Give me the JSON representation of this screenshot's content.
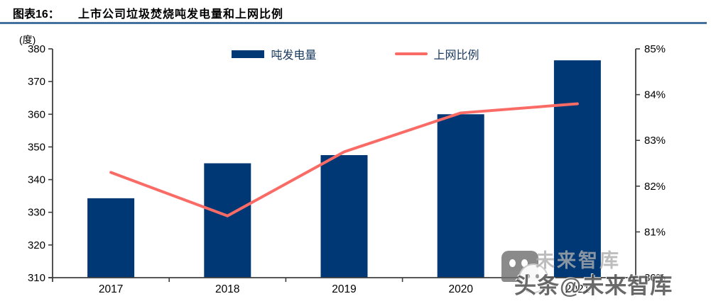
{
  "header": {
    "label": "图表16：",
    "title": "上市公司垃圾焚烧吨发电量和上网比例"
  },
  "unit_label": "(度)",
  "legend": {
    "items": [
      {
        "label": "吨发电量"
      },
      {
        "label": "上网比例"
      }
    ]
  },
  "chart_data": {
    "type": "bar+line",
    "title": "上市公司垃圾焚烧吨发电量和上网比例",
    "categories": [
      "2017",
      "2018",
      "2019",
      "2020",
      "2021"
    ],
    "series": [
      {
        "name": "吨发电量",
        "type": "bar",
        "axis": "left",
        "unit": "度",
        "values": [
          334.3,
          345,
          347.5,
          360,
          376.5
        ]
      },
      {
        "name": "上网比例",
        "type": "line",
        "axis": "right",
        "unit": "%",
        "values": [
          82.3,
          81.35,
          82.75,
          83.6,
          83.8
        ]
      }
    ],
    "left_axis": {
      "label": "(度)",
      "min": 310,
      "max": 380,
      "ticks": [
        380,
        370,
        360,
        350,
        340,
        330,
        320,
        310
      ]
    },
    "right_axis": {
      "min": 80,
      "max": 85,
      "ticks": [
        "85%",
        "84%",
        "83%",
        "82%",
        "81%",
        "80%"
      ]
    },
    "colors": {
      "bar": "#003876",
      "line": "#FA6B66",
      "axis": "#3F3F3F",
      "title_rule": "#41719C"
    },
    "legend_position": "top",
    "grid": false
  },
  "watermark": {
    "text": "头条@未来智库",
    "shadow_text": "未来智库"
  }
}
